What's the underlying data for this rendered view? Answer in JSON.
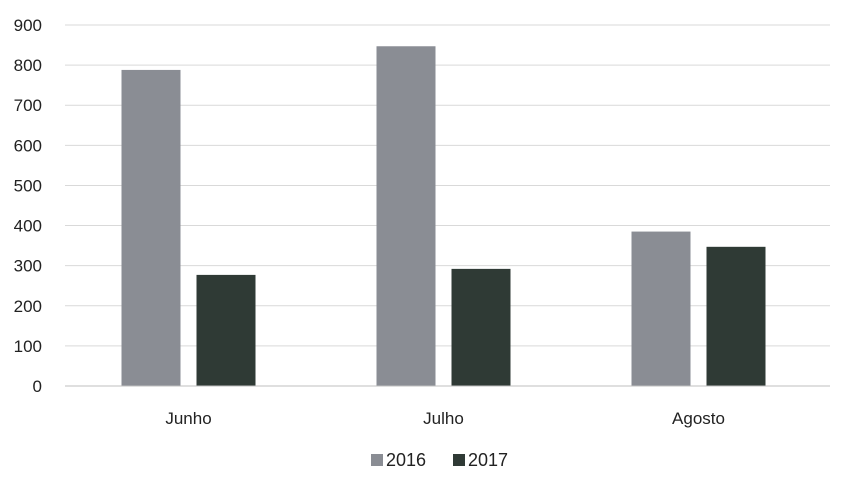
{
  "chart_data": {
    "type": "bar",
    "title": "",
    "xlabel": "",
    "ylabel": "",
    "categories": [
      "Junho",
      "Julho",
      "Agosto"
    ],
    "series": [
      {
        "name": "2016",
        "values": [
          788,
          847,
          385
        ],
        "color": "#8a8d94"
      },
      {
        "name": "2017",
        "values": [
          277,
          292,
          347
        ],
        "color": "#2f3a35"
      }
    ],
    "ylim": [
      0,
      900
    ],
    "yticks": [
      0,
      100,
      200,
      300,
      400,
      500,
      600,
      700,
      800,
      900
    ],
    "grid": true,
    "legend_position": "bottom"
  }
}
